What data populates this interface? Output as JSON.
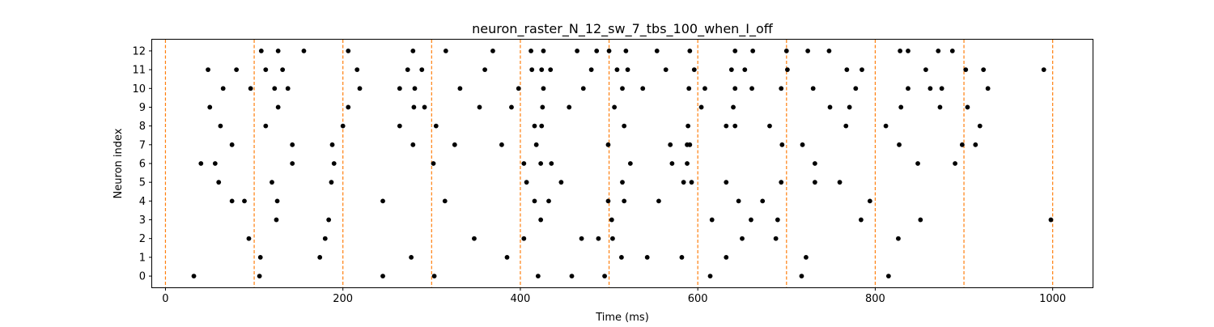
{
  "chart_data": {
    "type": "scatter",
    "title": "neuron_raster_N_12_sw_7_tbs_100_when_I_off",
    "xlabel": "Time (ms)",
    "ylabel": "Neuron index",
    "xlim": [
      -15,
      1045
    ],
    "ylim": [
      -0.6,
      12.6
    ],
    "x_ticks": [
      0,
      200,
      400,
      600,
      800,
      1000
    ],
    "y_ticks": [
      0,
      1,
      2,
      3,
      4,
      5,
      6,
      7,
      8,
      9,
      10,
      11,
      12
    ],
    "grid": false,
    "vlines": [
      0,
      100,
      200,
      300,
      400,
      500,
      600,
      700,
      800,
      900,
      1000
    ],
    "colors": {
      "spike": "#000000",
      "vline": "#ff7f0e",
      "axis": "#000000",
      "background": "#ffffff"
    },
    "series": [
      {
        "points": [
          [
            32,
            0
          ],
          [
            106,
            0
          ],
          [
            245,
            0
          ],
          [
            303,
            0
          ],
          [
            420,
            0
          ],
          [
            458,
            0
          ],
          [
            495,
            0
          ],
          [
            614,
            0
          ],
          [
            717,
            0
          ],
          [
            815,
            0
          ],
          [
            107,
            1
          ],
          [
            174,
            1
          ],
          [
            277,
            1
          ],
          [
            385,
            1
          ],
          [
            514,
            1
          ],
          [
            543,
            1
          ],
          [
            582,
            1
          ],
          [
            632,
            1
          ],
          [
            722,
            1
          ],
          [
            94,
            2
          ],
          [
            180,
            2
          ],
          [
            348,
            2
          ],
          [
            404,
            2
          ],
          [
            469,
            2
          ],
          [
            488,
            2
          ],
          [
            504,
            2
          ],
          [
            650,
            2
          ],
          [
            688,
            2
          ],
          [
            826,
            2
          ],
          [
            125,
            3
          ],
          [
            184,
            3
          ],
          [
            423,
            3
          ],
          [
            503,
            3
          ],
          [
            616,
            3
          ],
          [
            660,
            3
          ],
          [
            690,
            3
          ],
          [
            784,
            3
          ],
          [
            851,
            3
          ],
          [
            998,
            3
          ],
          [
            75,
            4
          ],
          [
            89,
            4
          ],
          [
            126,
            4
          ],
          [
            245,
            4
          ],
          [
            315,
            4
          ],
          [
            416,
            4
          ],
          [
            432,
            4
          ],
          [
            499,
            4
          ],
          [
            517,
            4
          ],
          [
            556,
            4
          ],
          [
            646,
            4
          ],
          [
            673,
            4
          ],
          [
            794,
            4
          ],
          [
            60,
            5
          ],
          [
            120,
            5
          ],
          [
            187,
            5
          ],
          [
            407,
            5
          ],
          [
            446,
            5
          ],
          [
            515,
            5
          ],
          [
            584,
            5
          ],
          [
            593,
            5
          ],
          [
            632,
            5
          ],
          [
            694,
            5
          ],
          [
            732,
            5
          ],
          [
            760,
            5
          ],
          [
            40,
            6
          ],
          [
            56,
            6
          ],
          [
            143,
            6
          ],
          [
            190,
            6
          ],
          [
            302,
            6
          ],
          [
            404,
            6
          ],
          [
            423,
            6
          ],
          [
            435,
            6
          ],
          [
            524,
            6
          ],
          [
            571,
            6
          ],
          [
            588,
            6
          ],
          [
            732,
            6
          ],
          [
            848,
            6
          ],
          [
            890,
            6
          ],
          [
            75,
            7
          ],
          [
            143,
            7
          ],
          [
            188,
            7
          ],
          [
            279,
            7
          ],
          [
            326,
            7
          ],
          [
            379,
            7
          ],
          [
            418,
            7
          ],
          [
            499,
            7
          ],
          [
            569,
            7
          ],
          [
            588,
            7
          ],
          [
            591,
            7
          ],
          [
            695,
            7
          ],
          [
            718,
            7
          ],
          [
            827,
            7
          ],
          [
            898,
            7
          ],
          [
            913,
            7
          ],
          [
            62,
            8
          ],
          [
            113,
            8
          ],
          [
            200,
            8
          ],
          [
            264,
            8
          ],
          [
            305,
            8
          ],
          [
            416,
            8
          ],
          [
            424,
            8
          ],
          [
            517,
            8
          ],
          [
            589,
            8
          ],
          [
            632,
            8
          ],
          [
            642,
            8
          ],
          [
            681,
            8
          ],
          [
            767,
            8
          ],
          [
            812,
            8
          ],
          [
            918,
            8
          ],
          [
            50,
            9
          ],
          [
            127,
            9
          ],
          [
            206,
            9
          ],
          [
            280,
            9
          ],
          [
            292,
            9
          ],
          [
            354,
            9
          ],
          [
            390,
            9
          ],
          [
            425,
            9
          ],
          [
            455,
            9
          ],
          [
            506,
            9
          ],
          [
            604,
            9
          ],
          [
            640,
            9
          ],
          [
            749,
            9
          ],
          [
            771,
            9
          ],
          [
            829,
            9
          ],
          [
            873,
            9
          ],
          [
            904,
            9
          ],
          [
            65,
            10
          ],
          [
            96,
            10
          ],
          [
            123,
            10
          ],
          [
            138,
            10
          ],
          [
            219,
            10
          ],
          [
            264,
            10
          ],
          [
            281,
            10
          ],
          [
            332,
            10
          ],
          [
            398,
            10
          ],
          [
            426,
            10
          ],
          [
            471,
            10
          ],
          [
            515,
            10
          ],
          [
            538,
            10
          ],
          [
            590,
            10
          ],
          [
            608,
            10
          ],
          [
            642,
            10
          ],
          [
            661,
            10
          ],
          [
            694,
            10
          ],
          [
            730,
            10
          ],
          [
            778,
            10
          ],
          [
            837,
            10
          ],
          [
            862,
            10
          ],
          [
            875,
            10
          ],
          [
            927,
            10
          ],
          [
            48,
            11
          ],
          [
            80,
            11
          ],
          [
            113,
            11
          ],
          [
            132,
            11
          ],
          [
            216,
            11
          ],
          [
            273,
            11
          ],
          [
            289,
            11
          ],
          [
            360,
            11
          ],
          [
            413,
            11
          ],
          [
            424,
            11
          ],
          [
            434,
            11
          ],
          [
            480,
            11
          ],
          [
            509,
            11
          ],
          [
            521,
            11
          ],
          [
            564,
            11
          ],
          [
            596,
            11
          ],
          [
            638,
            11
          ],
          [
            653,
            11
          ],
          [
            701,
            11
          ],
          [
            768,
            11
          ],
          [
            785,
            11
          ],
          [
            857,
            11
          ],
          [
            902,
            11
          ],
          [
            922,
            11
          ],
          [
            990,
            11
          ],
          [
            108,
            12
          ],
          [
            127,
            12
          ],
          [
            156,
            12
          ],
          [
            206,
            12
          ],
          [
            279,
            12
          ],
          [
            316,
            12
          ],
          [
            369,
            12
          ],
          [
            412,
            12
          ],
          [
            426,
            12
          ],
          [
            464,
            12
          ],
          [
            486,
            12
          ],
          [
            500,
            12
          ],
          [
            519,
            12
          ],
          [
            554,
            12
          ],
          [
            591,
            12
          ],
          [
            642,
            12
          ],
          [
            662,
            12
          ],
          [
            700,
            12
          ],
          [
            724,
            12
          ],
          [
            748,
            12
          ],
          [
            828,
            12
          ],
          [
            837,
            12
          ],
          [
            871,
            12
          ],
          [
            887,
            12
          ]
        ]
      }
    ]
  }
}
